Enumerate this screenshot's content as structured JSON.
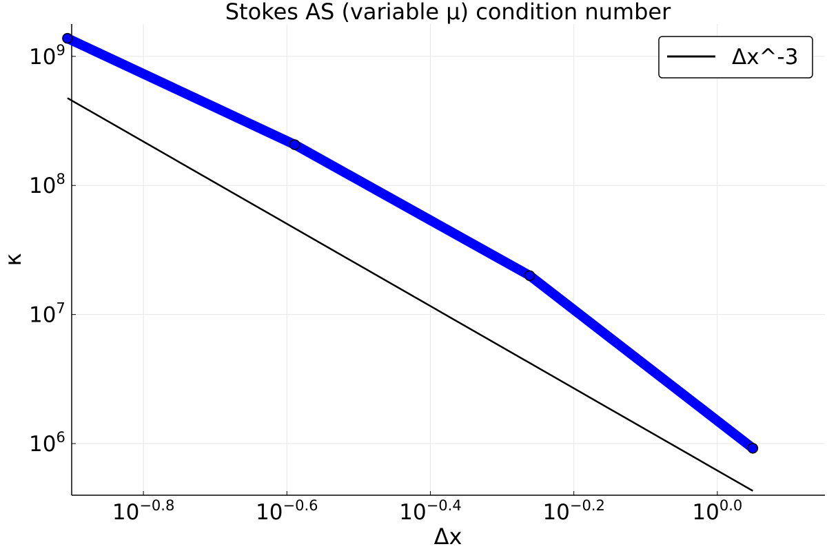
{
  "chart_data": {
    "type": "line",
    "title": "Stokes AS (variable μ) condition number",
    "xlabel": "Δx",
    "ylabel": "κ",
    "xscale": "log10",
    "yscale": "log10",
    "xlim_log10": [
      -0.9,
      0.15
    ],
    "ylim_log10": [
      5.6,
      9.25
    ],
    "grid": true,
    "legend_position": "top-right",
    "x_ticks": [
      {
        "base": "10",
        "exp": "−0.8",
        "value_log10": -0.8
      },
      {
        "base": "10",
        "exp": "−0.6",
        "value_log10": -0.6
      },
      {
        "base": "10",
        "exp": "−0.4",
        "value_log10": -0.4
      },
      {
        "base": "10",
        "exp": "−0.2",
        "value_log10": -0.2
      },
      {
        "base": "10",
        "exp": "0.0",
        "value_log10": 0.0
      }
    ],
    "y_ticks": [
      {
        "base": "10",
        "exp": "6",
        "value_log10": 6
      },
      {
        "base": "10",
        "exp": "7",
        "value_log10": 7
      },
      {
        "base": "10",
        "exp": "8",
        "value_log10": 8
      },
      {
        "base": "10",
        "exp": "9",
        "value_log10": 9
      }
    ],
    "series": [
      {
        "name": "",
        "color": "#0000ff",
        "marker_color": "#0000ff",
        "x": [
          0.1242,
          0.2576,
          0.5477,
          1.1208
        ],
        "y": [
          1380000000,
          207000000,
          20000000,
          920000
        ],
        "show_in_legend": false
      },
      {
        "name": "Δx^-3",
        "color": "#000000",
        "x": [
          0.1242,
          1.1208
        ],
        "y": [
          475000000,
          430000
        ],
        "show_in_legend": true
      }
    ]
  }
}
